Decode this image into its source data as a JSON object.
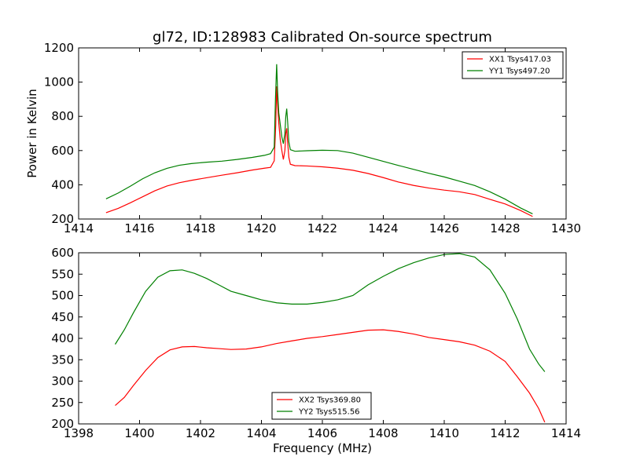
{
  "page": {
    "title": "gl72, ID:128983 Calibrated On-source spectrum",
    "xlabel": "Frequency (MHz)"
  },
  "chart_data": [
    {
      "type": "line",
      "ylabel": "Power in Kelvin",
      "xlim": [
        1414,
        1430
      ],
      "ylim": [
        200,
        1200
      ],
      "xticks": [
        1414,
        1416,
        1418,
        1420,
        1422,
        1424,
        1426,
        1428,
        1430
      ],
      "yticks": [
        200,
        400,
        600,
        800,
        1000,
        1200
      ],
      "legend_position": "top-right",
      "series": [
        {
          "name": "XX1 Tsys417.03",
          "color": "#ff0000",
          "points": [
            [
              1414.9,
              237
            ],
            [
              1415.3,
              262
            ],
            [
              1415.7,
              295
            ],
            [
              1416.1,
              330
            ],
            [
              1416.5,
              365
            ],
            [
              1416.9,
              393
            ],
            [
              1417.3,
              412
            ],
            [
              1417.7,
              426
            ],
            [
              1418.2,
              441
            ],
            [
              1418.7,
              456
            ],
            [
              1419.2,
              470
            ],
            [
              1419.7,
              486
            ],
            [
              1420.1,
              497
            ],
            [
              1420.3,
              502
            ],
            [
              1420.42,
              540
            ],
            [
              1420.47,
              750
            ],
            [
              1420.5,
              975
            ],
            [
              1420.53,
              870
            ],
            [
              1420.57,
              760
            ],
            [
              1420.62,
              660
            ],
            [
              1420.67,
              600
            ],
            [
              1420.72,
              548
            ],
            [
              1420.77,
              600
            ],
            [
              1420.8,
              700
            ],
            [
              1420.83,
              730
            ],
            [
              1420.86,
              650
            ],
            [
              1420.9,
              560
            ],
            [
              1420.95,
              520
            ],
            [
              1421.1,
              512
            ],
            [
              1421.5,
              510
            ],
            [
              1422.0,
              505
            ],
            [
              1422.5,
              497
            ],
            [
              1423.0,
              485
            ],
            [
              1423.5,
              466
            ],
            [
              1424.0,
              442
            ],
            [
              1424.5,
              416
            ],
            [
              1425.0,
              396
            ],
            [
              1425.5,
              381
            ],
            [
              1426.0,
              369
            ],
            [
              1426.5,
              359
            ],
            [
              1427.0,
              343
            ],
            [
              1427.5,
              315
            ],
            [
              1428.0,
              288
            ],
            [
              1428.5,
              250
            ],
            [
              1428.9,
              215
            ]
          ]
        },
        {
          "name": "YY1 Tsys497.20",
          "color": "#008000",
          "points": [
            [
              1414.9,
              318
            ],
            [
              1415.3,
              352
            ],
            [
              1415.7,
              392
            ],
            [
              1416.1,
              435
            ],
            [
              1416.5,
              470
            ],
            [
              1416.9,
              496
            ],
            [
              1417.3,
              514
            ],
            [
              1417.7,
              524
            ],
            [
              1418.2,
              532
            ],
            [
              1418.7,
              538
            ],
            [
              1419.2,
              548
            ],
            [
              1419.7,
              560
            ],
            [
              1420.1,
              572
            ],
            [
              1420.3,
              582
            ],
            [
              1420.42,
              620
            ],
            [
              1420.46,
              900
            ],
            [
              1420.5,
              1105
            ],
            [
              1420.53,
              950
            ],
            [
              1420.57,
              820
            ],
            [
              1420.62,
              750
            ],
            [
              1420.67,
              680
            ],
            [
              1420.72,
              640
            ],
            [
              1420.77,
              700
            ],
            [
              1420.8,
              800
            ],
            [
              1420.83,
              845
            ],
            [
              1420.86,
              770
            ],
            [
              1420.9,
              650
            ],
            [
              1420.95,
              605
            ],
            [
              1421.1,
              596
            ],
            [
              1421.5,
              599
            ],
            [
              1422.0,
              602
            ],
            [
              1422.5,
              600
            ],
            [
              1423.0,
              585
            ],
            [
              1423.5,
              561
            ],
            [
              1424.0,
              537
            ],
            [
              1424.5,
              513
            ],
            [
              1425.0,
              490
            ],
            [
              1425.5,
              467
            ],
            [
              1426.0,
              446
            ],
            [
              1426.5,
              421
            ],
            [
              1427.0,
              396
            ],
            [
              1427.5,
              359
            ],
            [
              1428.0,
              316
            ],
            [
              1428.5,
              265
            ],
            [
              1428.9,
              230
            ]
          ]
        }
      ]
    },
    {
      "type": "line",
      "xlim": [
        1398,
        1414
      ],
      "ylim": [
        200,
        600
      ],
      "xticks": [
        1398,
        1400,
        1402,
        1404,
        1406,
        1408,
        1410,
        1412,
        1414
      ],
      "yticks": [
        200,
        250,
        300,
        350,
        400,
        450,
        500,
        550,
        600
      ],
      "legend_position": "bottom-center",
      "series": [
        {
          "name": "XX2 Tsys369.80",
          "color": "#ff0000",
          "points": [
            [
              1399.2,
              243
            ],
            [
              1399.5,
              262
            ],
            [
              1399.8,
              290
            ],
            [
              1400.2,
              325
            ],
            [
              1400.6,
              355
            ],
            [
              1401.0,
              373
            ],
            [
              1401.4,
              380
            ],
            [
              1401.8,
              381
            ],
            [
              1402.2,
              378
            ],
            [
              1402.6,
              376
            ],
            [
              1403.0,
              374
            ],
            [
              1403.5,
              375
            ],
            [
              1404.0,
              380
            ],
            [
              1404.5,
              388
            ],
            [
              1405.0,
              394
            ],
            [
              1405.5,
              400
            ],
            [
              1406.0,
              404
            ],
            [
              1406.5,
              409
            ],
            [
              1407.0,
              414
            ],
            [
              1407.5,
              419
            ],
            [
              1408.0,
              420
            ],
            [
              1408.5,
              416
            ],
            [
              1409.0,
              410
            ],
            [
              1409.5,
              402
            ],
            [
              1410.0,
              397
            ],
            [
              1410.5,
              392
            ],
            [
              1411.0,
              384
            ],
            [
              1411.5,
              370
            ],
            [
              1412.0,
              346
            ],
            [
              1412.4,
              310
            ],
            [
              1412.8,
              272
            ],
            [
              1413.1,
              236
            ],
            [
              1413.3,
              204
            ]
          ]
        },
        {
          "name": "YY2 Tsys515.56",
          "color": "#008000",
          "points": [
            [
              1399.2,
              386
            ],
            [
              1399.5,
              420
            ],
            [
              1399.8,
              460
            ],
            [
              1400.2,
              510
            ],
            [
              1400.6,
              543
            ],
            [
              1401.0,
              558
            ],
            [
              1401.4,
              560
            ],
            [
              1401.8,
              552
            ],
            [
              1402.2,
              540
            ],
            [
              1402.6,
              525
            ],
            [
              1403.0,
              510
            ],
            [
              1403.5,
              500
            ],
            [
              1404.0,
              490
            ],
            [
              1404.5,
              483
            ],
            [
              1405.0,
              480
            ],
            [
              1405.5,
              480
            ],
            [
              1406.0,
              484
            ],
            [
              1406.5,
              490
            ],
            [
              1407.0,
              500
            ],
            [
              1407.5,
              525
            ],
            [
              1408.0,
              545
            ],
            [
              1408.5,
              563
            ],
            [
              1409.0,
              577
            ],
            [
              1409.5,
              588
            ],
            [
              1410.0,
              596
            ],
            [
              1410.5,
              598
            ],
            [
              1411.0,
              590
            ],
            [
              1411.5,
              560
            ],
            [
              1412.0,
              505
            ],
            [
              1412.4,
              445
            ],
            [
              1412.8,
              375
            ],
            [
              1413.1,
              340
            ],
            [
              1413.3,
              322
            ]
          ]
        }
      ]
    }
  ]
}
